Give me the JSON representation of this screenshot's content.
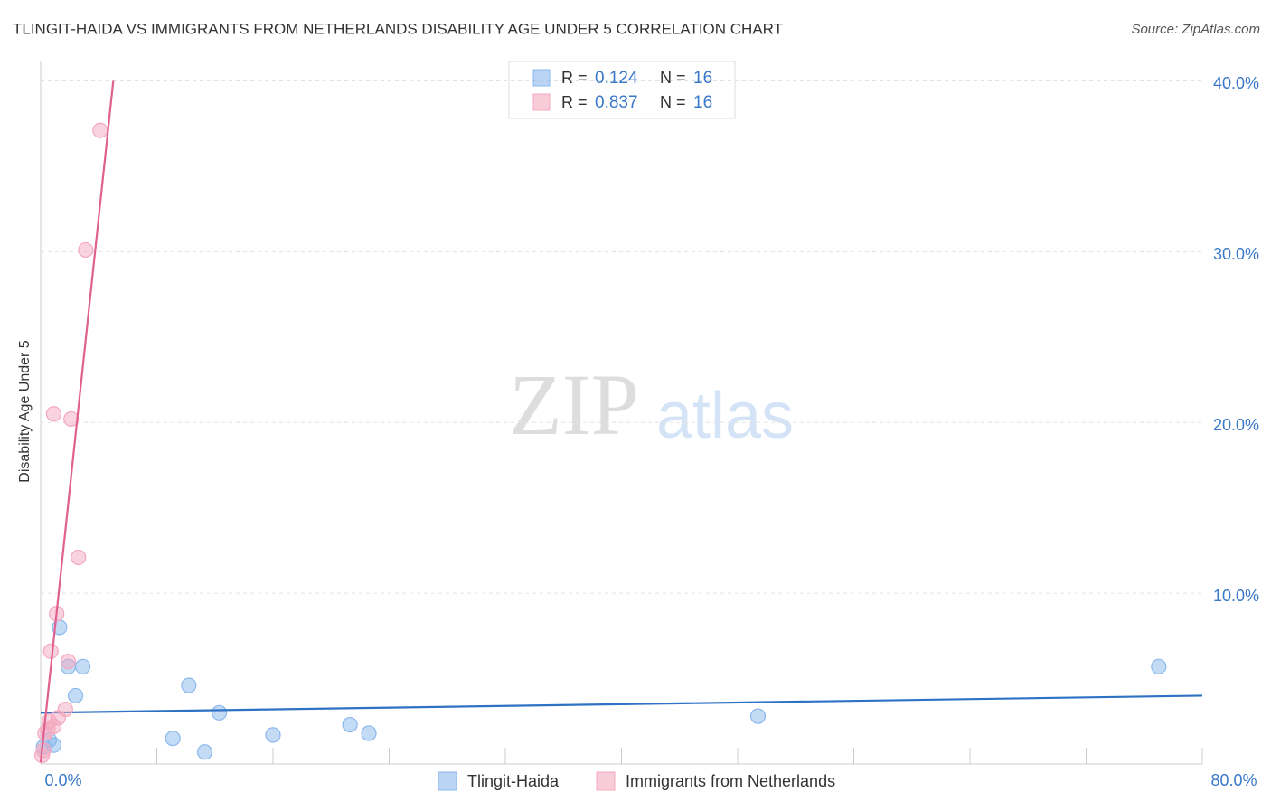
{
  "chart_data": {
    "type": "scatter",
    "title": "TLINGIT-HAIDA VS IMMIGRANTS FROM NETHERLANDS DISABILITY AGE UNDER 5 CORRELATION CHART",
    "source": "Source: ZipAtlas.com",
    "y_label": "Disability Age Under 5",
    "watermark": [
      "ZIP",
      "atlas"
    ],
    "xlim": [
      0,
      80
    ],
    "ylim": [
      0,
      40.5
    ],
    "xticks": [
      {
        "value": 0,
        "label": "0.0%"
      },
      {
        "value": 80,
        "label": "80.0%"
      }
    ],
    "xminor_ticks": [
      8,
      16,
      24,
      32,
      40,
      48,
      56,
      64,
      72
    ],
    "yticks": [
      {
        "value": 10,
        "label": "10.0%"
      },
      {
        "value": 20,
        "label": "20.0%"
      },
      {
        "value": 30,
        "label": "30.0%"
      },
      {
        "value": 40,
        "label": "40.0%"
      }
    ],
    "grid": true,
    "series": [
      {
        "name": "Tlingit-Haida",
        "color": "#8ab8ec",
        "line_color": "#2e72c4",
        "r_label": "R =",
        "r": "0.124",
        "n_label": "N =",
        "n": "16",
        "x": [
          0.2,
          0.6,
          0.9,
          1.3,
          1.9,
          2.4,
          2.9,
          9.1,
          10.2,
          11.3,
          12.3,
          16.0,
          21.3,
          22.6,
          49.4,
          77.0
        ],
        "values": [
          1.0,
          1.4,
          1.1,
          8.0,
          5.7,
          4.0,
          5.7,
          1.5,
          4.6,
          0.7,
          3.0,
          1.7,
          2.3,
          1.8,
          2.8,
          5.7
        ],
        "trend_x": [
          0,
          80
        ],
        "trend_y": [
          3.0,
          4.0
        ]
      },
      {
        "name": "Immigrants from Netherlands",
        "color": "#f4a8bf",
        "line_color": "#e0608f",
        "r_label": "R =",
        "r": "0.837",
        "n_label": "N =",
        "n": "16",
        "x": [
          4.1,
          3.1,
          0.9,
          2.1,
          2.6,
          1.1,
          0.7,
          1.9,
          1.7,
          1.2,
          0.9,
          0.5,
          0.3,
          0.6,
          0.2,
          0.1
        ],
        "values": [
          37.1,
          30.1,
          20.5,
          20.2,
          12.1,
          8.8,
          6.6,
          6.0,
          3.2,
          2.7,
          2.2,
          2.0,
          1.8,
          2.5,
          0.8,
          0.5
        ],
        "trend_x": [
          0,
          5.0
        ],
        "trend_y": [
          0.1,
          40.0
        ]
      }
    ]
  }
}
